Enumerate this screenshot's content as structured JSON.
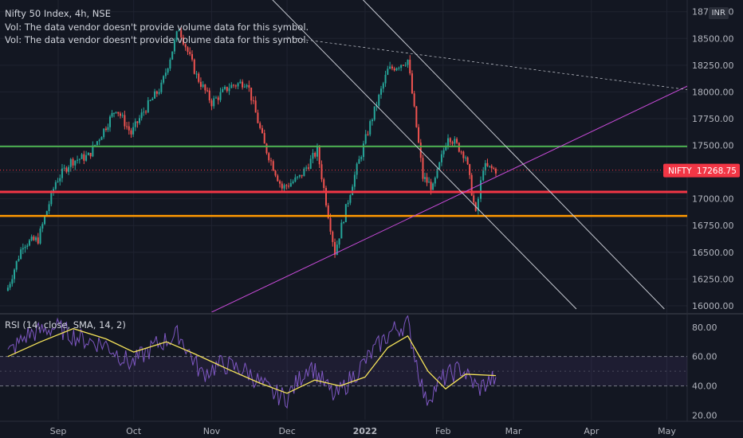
{
  "header": {
    "title": "Nifty 50 Index, 4h, NSE",
    "volume_note_1": "Vol: The data vendor doesn't provide volume data for this symbol.",
    "volume_note_2": "Vol: The data vendor doesn't provide volume data for this symbol."
  },
  "currency_badge": "INR",
  "last_price_tag": {
    "symbol": "NIFTY",
    "price": "17268.75"
  },
  "colors": {
    "background": "#131722",
    "up": "#26a69a",
    "down": "#ef5350",
    "grid": "#1f2330",
    "axis_text": "#b2b5be",
    "rsi_line": "#7e57c2",
    "rsi_sma": "#f7e55a",
    "support_green": "#4caf50",
    "resistance_red": "#f23645",
    "support_orange": "#ff9800",
    "trend_magenta": "#c84bd9",
    "channel": "#c9ccd4",
    "tag_red": "#f23645"
  },
  "chart_data": [
    {
      "type": "candlestick",
      "title": "Nifty 50 Index, 4h, NSE",
      "y_ticks": [
        "16000.00",
        "16250.00",
        "16500.00",
        "16750.00",
        "17000.00",
        "17250.00",
        "17500.00",
        "17750.00",
        "18000.00",
        "18250.00",
        "18500.00",
        "18750.00"
      ],
      "y_range": [
        15940,
        18800
      ],
      "x_ticks": [
        "Sep",
        "Oct",
        "Nov",
        "Dec",
        "2022",
        "Feb",
        "Mar",
        "Apr",
        "May"
      ],
      "grid": true,
      "last_price": 17268.75,
      "horizontal_levels": [
        {
          "value": 17490,
          "color": "green"
        },
        {
          "value": 17065,
          "color": "red"
        },
        {
          "value": 16840,
          "color": "orange"
        }
      ],
      "close_path": [
        {
          "date": "2021-08-12",
          "close": 16170
        },
        {
          "date": "2021-08-18",
          "close": 16580
        },
        {
          "date": "2021-08-24",
          "close": 16620
        },
        {
          "date": "2021-08-31",
          "close": 17160
        },
        {
          "date": "2021-09-06",
          "close": 17350
        },
        {
          "date": "2021-09-13",
          "close": 17400
        },
        {
          "date": "2021-09-20",
          "close": 17680
        },
        {
          "date": "2021-09-24",
          "close": 17850
        },
        {
          "date": "2021-09-30",
          "close": 17610
        },
        {
          "date": "2021-10-05",
          "close": 17820
        },
        {
          "date": "2021-10-12",
          "close": 18050
        },
        {
          "date": "2021-10-19",
          "close": 18600
        },
        {
          "date": "2021-10-26",
          "close": 18150
        },
        {
          "date": "2021-11-01",
          "close": 17900
        },
        {
          "date": "2021-11-08",
          "close": 18050
        },
        {
          "date": "2021-11-15",
          "close": 18100
        },
        {
          "date": "2021-11-22",
          "close": 17500
        },
        {
          "date": "2021-11-29",
          "close": 17100
        },
        {
          "date": "2021-12-06",
          "close": 17200
        },
        {
          "date": "2021-12-13",
          "close": 17450
        },
        {
          "date": "2021-12-20",
          "close": 16500
        },
        {
          "date": "2021-12-27",
          "close": 17150
        },
        {
          "date": "2022-01-03",
          "close": 17700
        },
        {
          "date": "2022-01-10",
          "close": 18200
        },
        {
          "date": "2022-01-18",
          "close": 18300
        },
        {
          "date": "2022-01-24",
          "close": 17200
        },
        {
          "date": "2022-01-28",
          "close": 17100
        },
        {
          "date": "2022-02-03",
          "close": 17600
        },
        {
          "date": "2022-02-10",
          "close": 17400
        },
        {
          "date": "2022-02-14",
          "close": 16850
        },
        {
          "date": "2022-02-17",
          "close": 17300
        },
        {
          "date": "2022-02-22",
          "close": 17270
        }
      ]
    },
    {
      "type": "line",
      "title": "RSI (14, close, SMA, 14, 2)",
      "y_ticks": [
        "20.00",
        "40.00",
        "60.00",
        "80.00"
      ],
      "y_range": [
        17,
        88
      ],
      "band": [
        40,
        60
      ],
      "midline": 50,
      "grid": true,
      "series": [
        {
          "name": "RSI",
          "values": [
            {
              "date": "2021-08-12",
              "value": 62
            },
            {
              "date": "2021-08-20",
              "value": 75
            },
            {
              "date": "2021-08-31",
              "value": 80
            },
            {
              "date": "2021-09-10",
              "value": 72
            },
            {
              "date": "2021-09-20",
              "value": 68
            },
            {
              "date": "2021-09-30",
              "value": 55
            },
            {
              "date": "2021-10-10",
              "value": 68
            },
            {
              "date": "2021-10-19",
              "value": 75
            },
            {
              "date": "2021-10-28",
              "value": 48
            },
            {
              "date": "2021-11-05",
              "value": 55
            },
            {
              "date": "2021-11-15",
              "value": 50
            },
            {
              "date": "2021-11-25",
              "value": 35
            },
            {
              "date": "2021-12-01",
              "value": 32
            },
            {
              "date": "2021-12-10",
              "value": 55
            },
            {
              "date": "2021-12-20",
              "value": 32
            },
            {
              "date": "2021-12-28",
              "value": 48
            },
            {
              "date": "2022-01-05",
              "value": 65
            },
            {
              "date": "2022-01-12",
              "value": 78
            },
            {
              "date": "2022-01-18",
              "value": 82
            },
            {
              "date": "2022-01-25",
              "value": 30
            },
            {
              "date": "2022-02-01",
              "value": 45
            },
            {
              "date": "2022-02-08",
              "value": 52
            },
            {
              "date": "2022-02-15",
              "value": 38
            },
            {
              "date": "2022-02-22",
              "value": 46
            }
          ]
        },
        {
          "name": "SMA",
          "values": [
            {
              "date": "2021-08-12",
              "value": 60
            },
            {
              "date": "2021-08-25",
              "value": 70
            },
            {
              "date": "2021-09-07",
              "value": 79
            },
            {
              "date": "2021-09-20",
              "value": 72
            },
            {
              "date": "2021-10-01",
              "value": 63
            },
            {
              "date": "2021-10-14",
              "value": 70
            },
            {
              "date": "2021-10-25",
              "value": 62
            },
            {
              "date": "2021-11-08",
              "value": 51
            },
            {
              "date": "2021-11-20",
              "value": 42
            },
            {
              "date": "2021-12-01",
              "value": 35
            },
            {
              "date": "2021-12-12",
              "value": 44
            },
            {
              "date": "2021-12-22",
              "value": 40
            },
            {
              "date": "2022-01-01",
              "value": 46
            },
            {
              "date": "2022-01-10",
              "value": 66
            },
            {
              "date": "2022-01-18",
              "value": 74
            },
            {
              "date": "2022-01-26",
              "value": 50
            },
            {
              "date": "2022-02-02",
              "value": 38
            },
            {
              "date": "2022-02-10",
              "value": 48
            },
            {
              "date": "2022-02-22",
              "value": 47
            }
          ]
        }
      ]
    }
  ]
}
